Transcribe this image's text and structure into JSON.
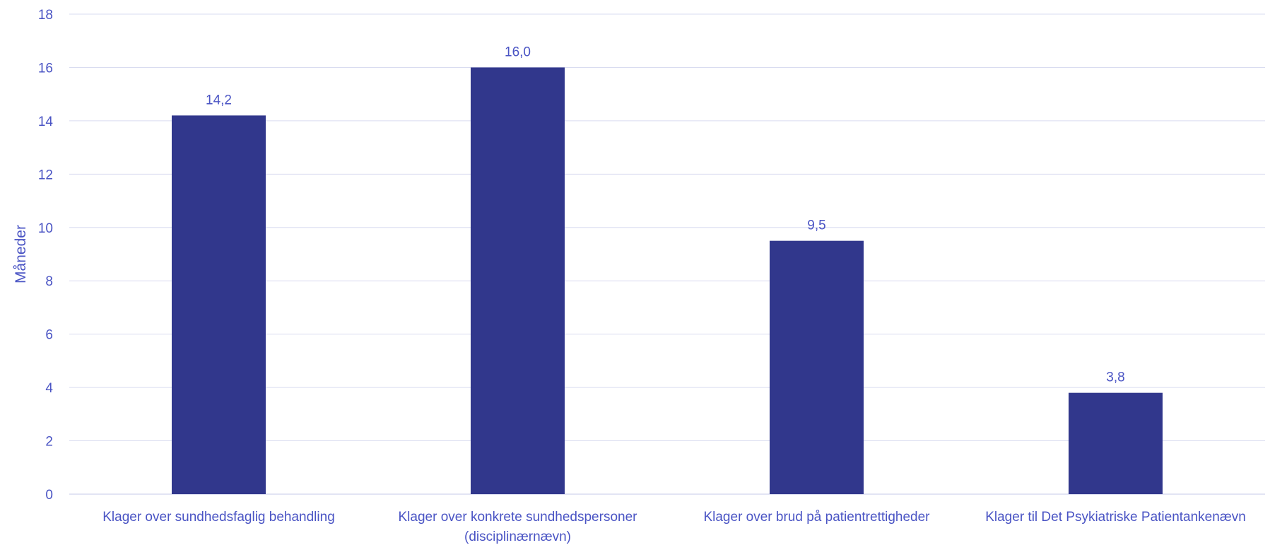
{
  "chart_data": {
    "type": "bar",
    "title": "",
    "xlabel": "",
    "ylabel": "Måneder",
    "ylim": [
      0,
      18
    ],
    "ytick_step": 2,
    "grid": true,
    "legend": "none",
    "categories": [
      [
        "Klager over sundhedsfaglig behandling"
      ],
      [
        "Klager over konkrete sundhedspersoner",
        "(disciplinærnævn)"
      ],
      [
        "Klager over brud på patientrettigheder"
      ],
      [
        "Klager til Det Psykiatriske Patientankenævn"
      ]
    ],
    "values": [
      14.2,
      16.0,
      9.5,
      3.8
    ],
    "value_labels": [
      "14,2",
      "16,0",
      "9,5",
      "3,8"
    ],
    "colors": {
      "bar": "#31378C",
      "text": "#4A54C4",
      "grid": "#D9DCF0"
    }
  }
}
